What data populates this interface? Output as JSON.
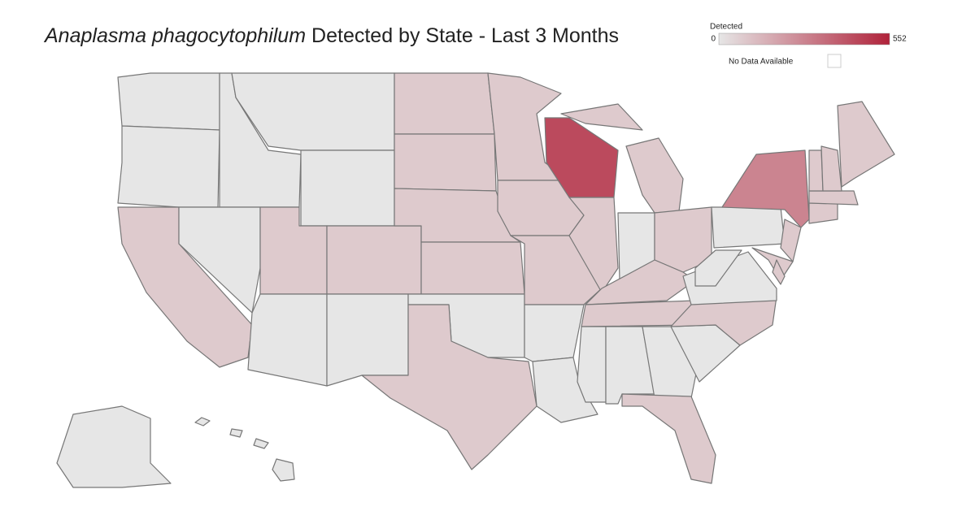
{
  "map": {
    "type": "choropleth",
    "title_italic": "Anaplasma phagocytophilum",
    "title": "Detected by State - Last 3 Months",
    "legend": {
      "title": "Detected",
      "min": 0,
      "max": 552,
      "colors": [
        "#e6e6e6",
        "#b0223a"
      ],
      "no_data_label": "No Data Available"
    },
    "values": [
      0,
      0,
      80,
      0,
      0,
      0,
      0,
      80,
      80,
      0,
      0,
      80,
      80,
      80,
      80,
      0,
      80,
      80,
      80,
      80,
      0,
      0,
      440,
      80,
      80,
      0,
      80,
      80,
      80,
      0,
      0,
      0,
      0,
      80,
      80,
      0,
      0,
      0,
      80,
      275,
      80,
      80,
      80,
      80,
      80,
      80,
      80,
      0,
      0
    ]
  }
}
